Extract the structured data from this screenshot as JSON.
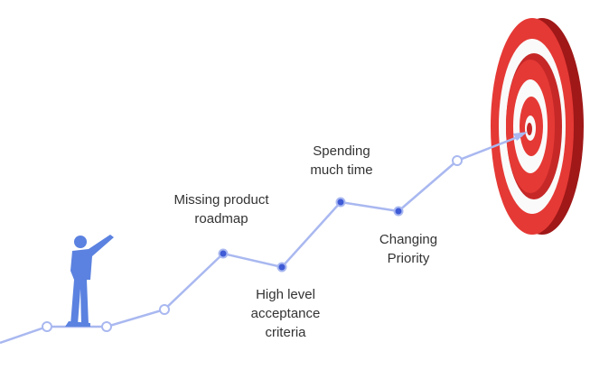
{
  "labels": [
    {
      "lines": [
        "Missing product",
        "roadmap"
      ]
    },
    {
      "lines": [
        "High level",
        "acceptance",
        "criteria"
      ]
    },
    {
      "lines": [
        "Spending",
        "much time"
      ]
    },
    {
      "lines": [
        "Changing",
        "Priority"
      ]
    }
  ]
}
